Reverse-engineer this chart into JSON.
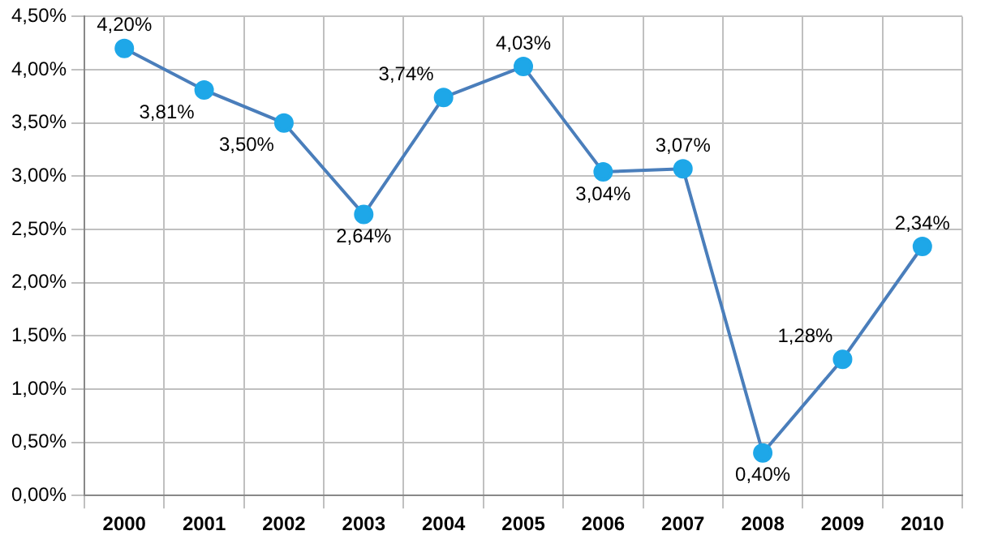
{
  "chart_data": {
    "type": "line",
    "categories": [
      "2000",
      "2001",
      "2002",
      "2003",
      "2004",
      "2005",
      "2006",
      "2007",
      "2008",
      "2009",
      "2010"
    ],
    "series": [
      {
        "color": "#4a7ebb",
        "values": [
          4.2,
          3.81,
          3.5,
          2.64,
          3.74,
          4.03,
          3.04,
          3.07,
          0.4,
          1.28,
          2.34
        ],
        "colors": [
          "#1ea7e8",
          "#1ea7e8",
          "#1ea7e8",
          "#1ea7e8",
          "#1ea7e8",
          "#1ea7e8",
          "#1ea7e8",
          "#1ea7e8",
          "#1ea7e8",
          "#1ea7e8",
          "#1ea7e8"
        ],
        "value_labels": [
          "4,20%",
          "3,81%",
          "3,50%",
          "2,64%",
          "3,74%",
          "4,03%",
          "3,04%",
          "3,07%",
          "0,40%",
          "1,28%",
          "2,34%"
        ]
      }
    ],
    "ylim": [
      0,
      4.5
    ],
    "yticks": [
      {
        "value": 0,
        "label": "0,00%"
      },
      {
        "value": 0.5,
        "label": "0,50%"
      },
      {
        "value": 1,
        "label": "1,00%"
      },
      {
        "value": 1.5,
        "label": "1,50%"
      },
      {
        "value": 2,
        "label": "2,00%"
      },
      {
        "value": 2.5,
        "label": "2,50%"
      },
      {
        "value": 3,
        "label": "3,00%"
      },
      {
        "value": 3.5,
        "label": "3,50%"
      },
      {
        "value": 4,
        "label": "4,00%"
      },
      {
        "value": 4.5,
        "label": "4,50%"
      }
    ],
    "grid": true,
    "legend": false,
    "marker": "circle",
    "line_style": "solid"
  }
}
